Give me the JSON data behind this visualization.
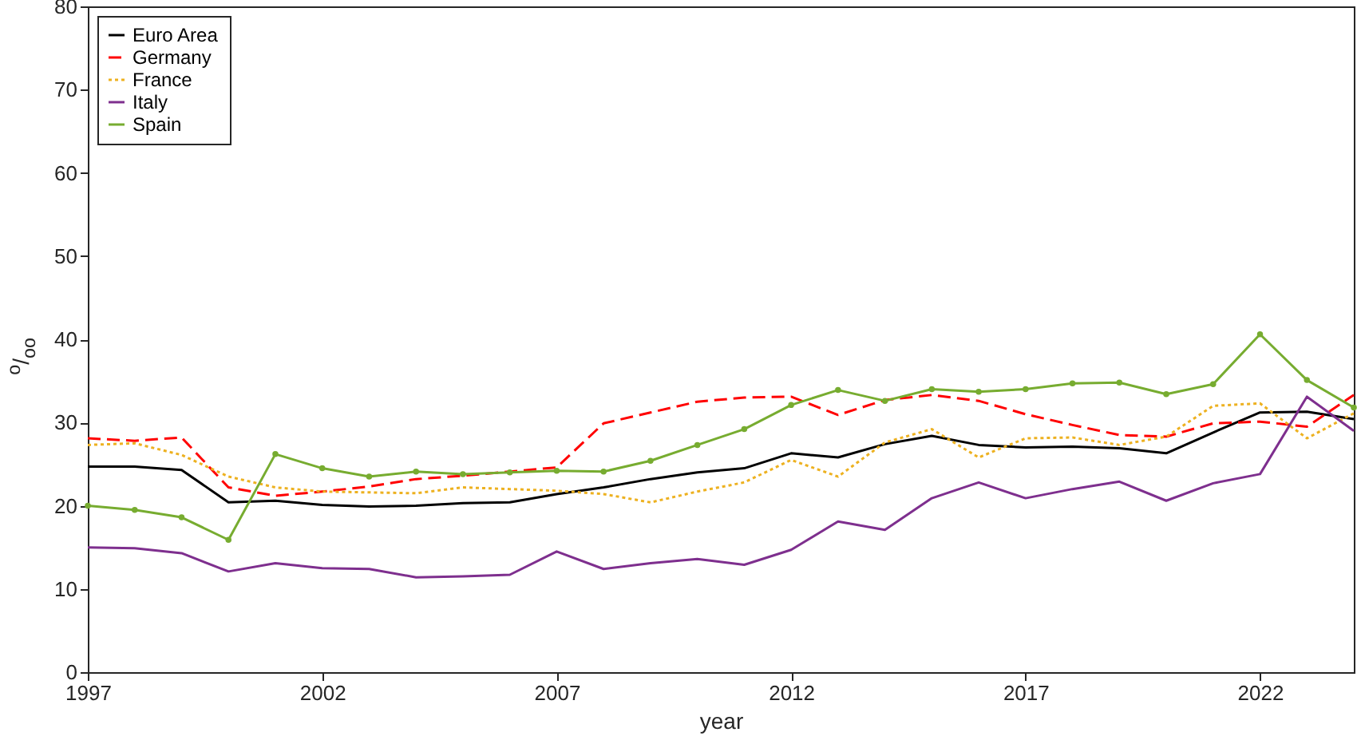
{
  "chart_data": {
    "type": "line",
    "xlabel": "year",
    "ylabel": "$^{o}$/$_{oo}$",
    "x": [
      1997,
      1998,
      1999,
      2000,
      2001,
      2002,
      2003,
      2004,
      2005,
      2006,
      2007,
      2008,
      2009,
      2010,
      2011,
      2012,
      2013,
      2014,
      2015,
      2016,
      2017,
      2018,
      2019,
      2020,
      2021,
      2022,
      2023,
      2024
    ],
    "xlim": [
      1997,
      2024
    ],
    "xticks": [
      1997,
      2002,
      2007,
      2012,
      2017,
      2022
    ],
    "ylim": [
      0,
      80
    ],
    "yticks": [
      0,
      10,
      20,
      30,
      40,
      50,
      60,
      70,
      80
    ],
    "grid": false,
    "legend": "top left",
    "marker": "none",
    "series": [
      {
        "name": "Euro Area",
        "color": "#000000",
        "line_style": "solid",
        "values": [
          24.7,
          24.7,
          24.3,
          20.4,
          20.6,
          20.1,
          19.9,
          20.0,
          20.3,
          20.4,
          21.4,
          22.2,
          23.2,
          24.0,
          24.5,
          26.3,
          25.8,
          27.4,
          28.4,
          27.3,
          27.0,
          27.1,
          26.9,
          26.3,
          28.8,
          31.2,
          31.3,
          30.4
        ]
      },
      {
        "name": "Germany",
        "color": "#ff0000",
        "line_style": "dashed",
        "values": [
          28.1,
          27.8,
          28.2,
          22.2,
          21.2,
          21.7,
          22.3,
          23.2,
          23.6,
          24.1,
          24.6,
          29.9,
          31.2,
          32.5,
          33.0,
          33.1,
          30.9,
          32.7,
          33.3,
          32.6,
          31.0,
          29.7,
          28.5,
          28.3,
          29.9,
          30.1,
          29.5,
          33.3
        ]
      },
      {
        "name": "France",
        "color": "#edb120",
        "line_style": "dotted",
        "values": [
          27.3,
          27.5,
          26.1,
          23.5,
          22.2,
          21.7,
          21.6,
          21.5,
          22.2,
          22.0,
          21.8,
          21.4,
          20.4,
          21.7,
          22.8,
          25.5,
          23.5,
          27.6,
          29.2,
          25.8,
          28.1,
          28.2,
          27.3,
          28.3,
          32.0,
          32.3,
          28.1,
          31.1
        ]
      },
      {
        "name": "Italy",
        "color": "#7e2f8e",
        "line_style": "solid",
        "values": [
          15.0,
          14.9,
          14.3,
          12.1,
          13.1,
          12.5,
          12.4,
          11.4,
          11.5,
          11.7,
          14.5,
          12.4,
          13.1,
          13.6,
          12.9,
          14.7,
          18.1,
          17.1,
          20.9,
          22.8,
          20.9,
          22.0,
          22.9,
          20.6,
          22.7,
          23.8,
          33.1,
          29.0
        ]
      },
      {
        "name": "Spain",
        "color": "#77ac30",
        "line_style": "solid",
        "marker": "circle",
        "values": [
          20.0,
          19.5,
          18.6,
          15.9,
          26.2,
          24.5,
          23.5,
          24.1,
          23.8,
          24.0,
          24.2,
          24.1,
          25.4,
          27.3,
          29.2,
          32.1,
          33.9,
          32.6,
          34.0,
          33.7,
          34.0,
          34.7,
          34.8,
          33.4,
          34.6,
          40.6,
          35.1,
          31.8
        ]
      }
    ]
  }
}
